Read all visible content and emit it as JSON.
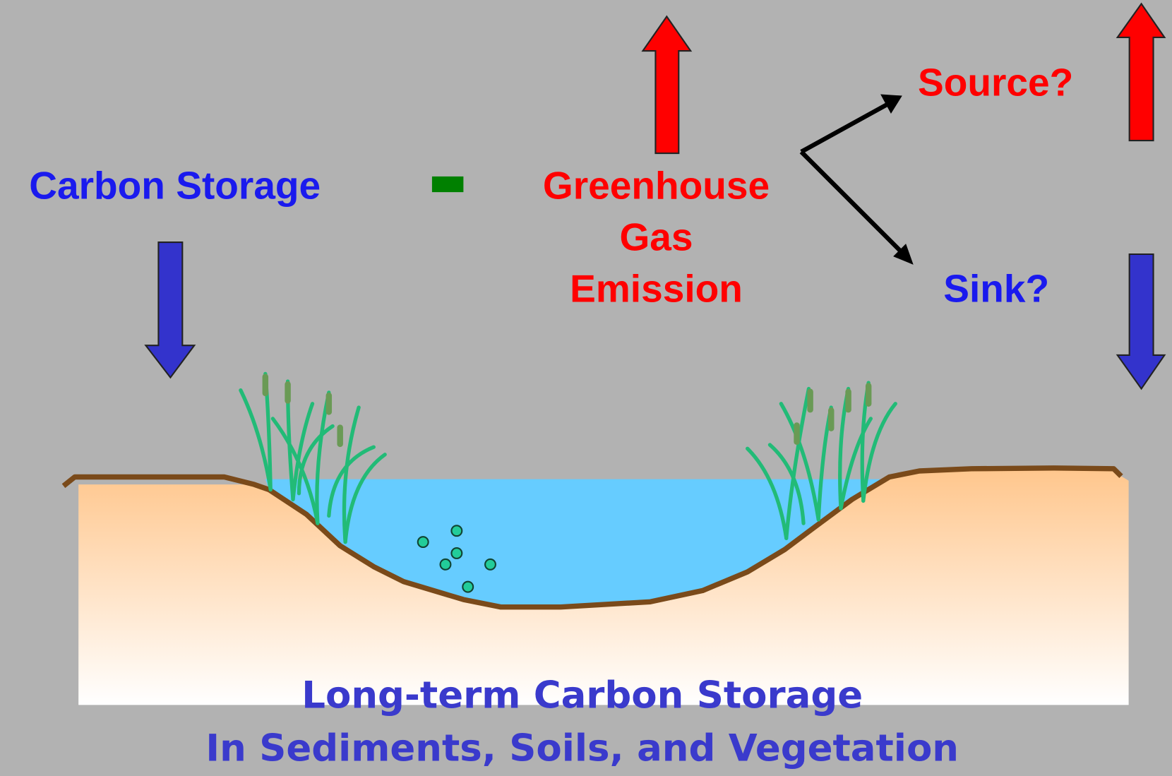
{
  "labels": {
    "carbon_storage": "Carbon Storage",
    "greenhouse": [
      "Greenhouse",
      "Gas",
      "Emission"
    ],
    "source": "Source?",
    "sink": "Sink?",
    "footer": [
      "Long-term Carbon Storage",
      "In Sediments, Soils, and Vegetation"
    ]
  }
}
